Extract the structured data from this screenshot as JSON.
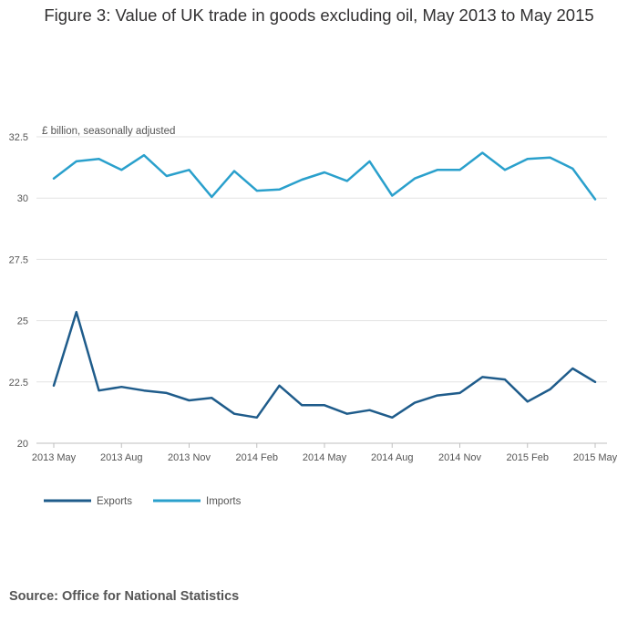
{
  "title": "Figure 3: Value of UK trade in goods excluding oil, May 2013 to May 2015",
  "source": "Source: Office for National Statistics",
  "colors": {
    "exports": "#1f5c8b",
    "imports": "#2aa0cc",
    "grid": "#e3e3e3",
    "axis": "#bfbfbf"
  },
  "chart_data": {
    "type": "line",
    "ylabel": "£ billion, seasonally adjusted",
    "ylim": [
      20,
      32.5
    ],
    "yticks": [
      20,
      22.5,
      25,
      27.5,
      30,
      32.5
    ],
    "ytick_labels": [
      "20",
      "22.5",
      "25",
      "27.5",
      "30",
      "32.5"
    ],
    "x": [
      "2013 May",
      "2013 Jun",
      "2013 Jul",
      "2013 Aug",
      "2013 Sep",
      "2013 Oct",
      "2013 Nov",
      "2013 Dec",
      "2014 Jan",
      "2014 Feb",
      "2014 Mar",
      "2014 Apr",
      "2014 May",
      "2014 Jun",
      "2014 Jul",
      "2014 Aug",
      "2014 Sep",
      "2014 Oct",
      "2014 Nov",
      "2014 Dec",
      "2015 Jan",
      "2015 Feb",
      "2015 Mar",
      "2015 Apr",
      "2015 May"
    ],
    "xtick_labels": [
      "2013 May",
      "2013 Aug",
      "2013 Nov",
      "2014 Feb",
      "2014 May",
      "2014 Aug",
      "2014 Nov",
      "2015 Feb",
      "2015 May"
    ],
    "grid": true,
    "legend_position": "bottom-left",
    "series": [
      {
        "name": "Exports",
        "values": [
          22.35,
          25.35,
          22.15,
          22.3,
          22.15,
          22.05,
          21.75,
          21.85,
          21.2,
          21.05,
          22.35,
          21.55,
          21.55,
          21.2,
          21.35,
          21.05,
          21.65,
          21.95,
          22.05,
          22.7,
          22.6,
          21.7,
          22.2,
          23.05,
          22.5
        ]
      },
      {
        "name": "Imports",
        "values": [
          30.8,
          31.5,
          31.6,
          31.15,
          31.75,
          30.9,
          31.15,
          30.05,
          31.1,
          30.3,
          30.35,
          30.75,
          31.05,
          30.7,
          31.5,
          30.1,
          30.8,
          31.15,
          31.15,
          31.85,
          31.15,
          31.6,
          31.65,
          31.2,
          29.95
        ]
      }
    ]
  }
}
